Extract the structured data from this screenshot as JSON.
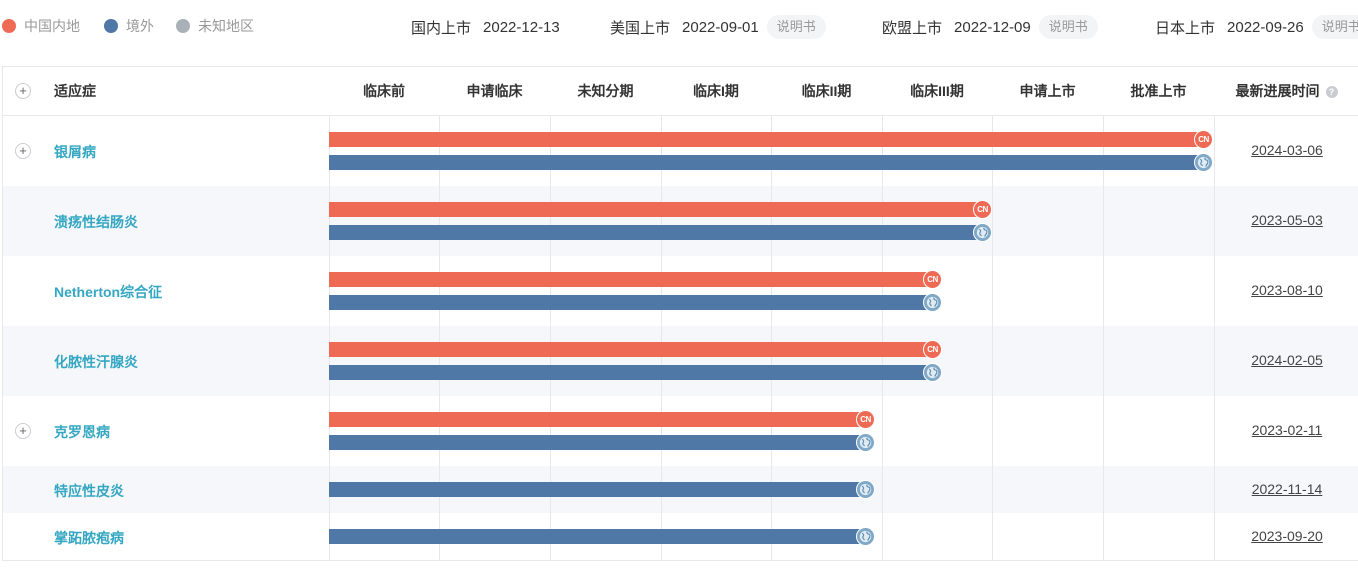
{
  "legend": [
    {
      "label": "中国内地",
      "color": "#ef6a54"
    },
    {
      "label": "境外",
      "color": "#4f78a6"
    },
    {
      "label": "未知地区",
      "color": "#a9b0b8"
    }
  ],
  "markets": [
    {
      "label": "国内上市",
      "date": "2022-12-13",
      "manual": ""
    },
    {
      "label": "美国上市",
      "date": "2022-09-01",
      "manual": "说明书"
    },
    {
      "label": "欧盟上市",
      "date": "2022-12-09",
      "manual": "说明书"
    },
    {
      "label": "日本上市",
      "date": "2022-09-26",
      "manual": "说明书"
    }
  ],
  "table": {
    "indication_header": "适应症",
    "phases": [
      "临床前",
      "申请临床",
      "未知分期",
      "临床I期",
      "临床II期",
      "临床III期",
      "申请上市",
      "批准上市"
    ],
    "latest_header": "最新进展时间",
    "rows": [
      {
        "name": "银屑病",
        "expandable": true,
        "cn_phase": 8,
        "global_phase": 8,
        "date": "2024-03-06"
      },
      {
        "name": "溃疡性结肠炎",
        "expandable": false,
        "cn_phase": 6,
        "global_phase": 6,
        "date": "2023-05-03"
      },
      {
        "name": "Netherton综合征",
        "expandable": false,
        "cn_phase": 5.55,
        "global_phase": 5.55,
        "date": "2023-08-10"
      },
      {
        "name": "化脓性汗腺炎",
        "expandable": false,
        "cn_phase": 5.55,
        "global_phase": 5.55,
        "date": "2024-02-05"
      },
      {
        "name": "克罗恩病",
        "expandable": true,
        "cn_phase": 4.95,
        "global_phase": 4.95,
        "date": "2023-02-11"
      },
      {
        "name": "特应性皮炎",
        "expandable": false,
        "cn_phase": null,
        "global_phase": 4.95,
        "date": "2022-11-14"
      },
      {
        "name": "掌跖脓疱病",
        "expandable": false,
        "cn_phase": null,
        "global_phase": 4.95,
        "date": "2023-09-20"
      }
    ]
  },
  "icons": {
    "expand": "plus-icon",
    "cn": "cn-flag-icon",
    "global": "globe-icon",
    "help": "question-icon"
  },
  "labels": {
    "expand_symbol": "+",
    "cn_badge": "CN",
    "help_symbol": "?"
  },
  "colors": {
    "cn_bar": "#ef6a54",
    "global_bar": "#4f78a6",
    "indication_text": "#35a7c2"
  }
}
